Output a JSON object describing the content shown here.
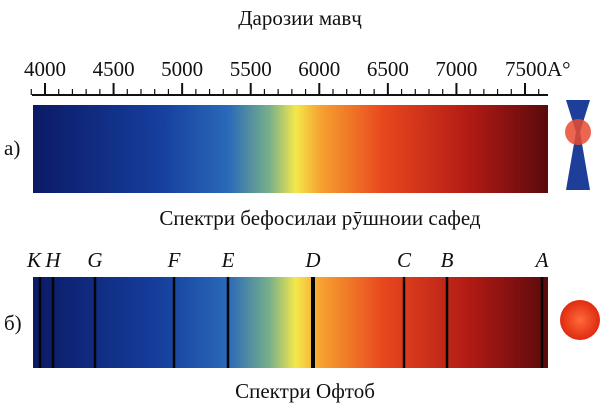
{
  "title": "Дарозии мавҷ",
  "scale": {
    "ticks": [
      4000,
      4500,
      5000,
      5500,
      6000,
      6500,
      7000,
      {
        "value": 7500,
        "label": "7500A°"
      }
    ]
  },
  "panels": [
    {
      "label": "а)",
      "caption": "Спектри бефосилаи рӯшноии сафед"
    },
    {
      "label": "б)",
      "caption": "Спектри Офтоб",
      "lines": [
        "K",
        "H",
        "G",
        "F",
        "E",
        "D",
        "C",
        "B",
        "A"
      ]
    }
  ]
}
